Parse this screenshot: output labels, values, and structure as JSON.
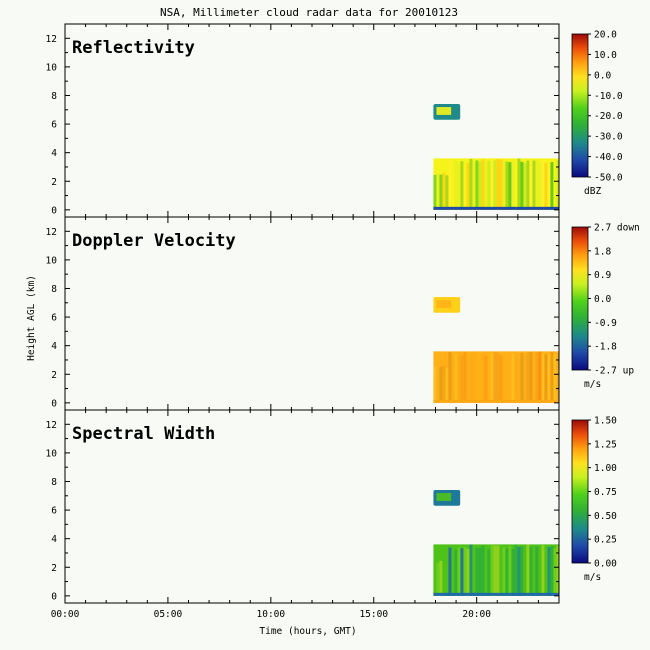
{
  "title": "NSA, Millimeter cloud radar data for 20010123",
  "ylabel": "Height AGL (km)",
  "xlabel": "Time (hours, GMT)",
  "chart_data": [
    {
      "type": "heatmap",
      "title": "Reflectivity",
      "xlabel": "Time (hours, GMT)",
      "ylabel": "Height AGL (km)",
      "x_ticks": [
        "00:00",
        "05:00",
        "10:00",
        "15:00",
        "20:00"
      ],
      "x_tick_values": [
        0,
        5,
        10,
        15,
        20
      ],
      "xlim": [
        0,
        24
      ],
      "y_ticks": [
        "0",
        "2",
        "4",
        "6",
        "8",
        "10",
        "12"
      ],
      "y_tick_values": [
        0,
        2,
        4,
        6,
        8,
        10,
        12
      ],
      "ylim": [
        -0.5,
        13
      ],
      "grid": false,
      "colorbar": {
        "ticks": [
          "20.0",
          "10.0",
          "0.0",
          "-10.0",
          "-20.0",
          "-30.0",
          "-40.0",
          "-50.0"
        ],
        "range": [
          -50,
          20
        ],
        "unit": "dBZ"
      },
      "echoes": [
        {
          "start_hour": 17.9,
          "end_hour": 24,
          "base_km": 0,
          "top_km": 3.6,
          "dominant": "green-yellow"
        },
        {
          "start_hour": 17.9,
          "end_hour": 19.2,
          "base_km": 6.3,
          "top_km": 7.4,
          "dominant": "teal-green"
        }
      ]
    },
    {
      "type": "heatmap",
      "title": "Doppler Velocity",
      "xlabel": "Time (hours, GMT)",
      "ylabel": "Height AGL (km)",
      "x_ticks": [
        "00:00",
        "05:00",
        "10:00",
        "15:00",
        "20:00"
      ],
      "x_tick_values": [
        0,
        5,
        10,
        15,
        20
      ],
      "xlim": [
        0,
        24
      ],
      "y_ticks": [
        "0",
        "2",
        "4",
        "6",
        "8",
        "10",
        "12"
      ],
      "y_tick_values": [
        0,
        2,
        4,
        6,
        8,
        10,
        12
      ],
      "ylim": [
        -0.5,
        13
      ],
      "grid": false,
      "colorbar": {
        "ticks": [
          "2.7 down",
          "1.8",
          "0.9",
          "0.0",
          "-0.9",
          "-1.8",
          "-2.7 up"
        ],
        "range": [
          -2.7,
          2.7
        ],
        "unit": "m/s"
      },
      "echoes": [
        {
          "start_hour": 17.9,
          "end_hour": 24,
          "base_km": 0,
          "top_km": 3.6,
          "dominant": "orange"
        },
        {
          "start_hour": 17.9,
          "end_hour": 19.2,
          "base_km": 6.3,
          "top_km": 7.4,
          "dominant": "yellow"
        }
      ]
    },
    {
      "type": "heatmap",
      "title": "Spectral Width",
      "xlabel": "Time (hours, GMT)",
      "ylabel": "Height AGL (km)",
      "x_ticks": [
        "00:00",
        "05:00",
        "10:00",
        "15:00",
        "20:00"
      ],
      "x_tick_values": [
        0,
        5,
        10,
        15,
        20
      ],
      "xlim": [
        0,
        24
      ],
      "y_ticks": [
        "0",
        "2",
        "4",
        "6",
        "8",
        "10",
        "12"
      ],
      "y_tick_values": [
        0,
        2,
        4,
        6,
        8,
        10,
        12
      ],
      "ylim": [
        -0.5,
        13
      ],
      "grid": false,
      "colorbar": {
        "ticks": [
          "1.50",
          "1.25",
          "1.00",
          "0.75",
          "0.50",
          "0.25",
          "0.00"
        ],
        "range": [
          0,
          1.5
        ],
        "unit": "m/s"
      },
      "echoes": [
        {
          "start_hour": 17.9,
          "end_hour": 24,
          "base_km": 0,
          "top_km": 3.6,
          "dominant": "green"
        },
        {
          "start_hour": 17.9,
          "end_hour": 19.2,
          "base_km": 6.3,
          "top_km": 7.4,
          "dominant": "teal"
        }
      ]
    }
  ]
}
